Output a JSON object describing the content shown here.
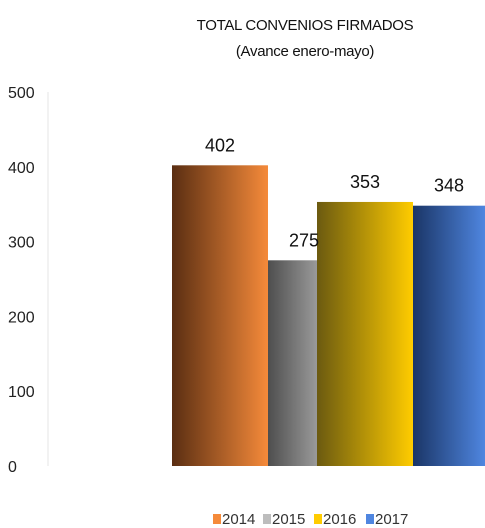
{
  "chart_data": {
    "type": "bar",
    "title": "TOTAL CONVENIOS FIRMADOS",
    "subtitle": "(Avance enero-mayo)",
    "categories": [
      "2014",
      "2015",
      "2016",
      "2017"
    ],
    "values": [
      402,
      275,
      353,
      348
    ],
    "ylim": [
      0,
      500
    ],
    "yticks": [
      "0",
      "100",
      "200",
      "300",
      "400",
      "500"
    ],
    "grid": false,
    "legend_position": "bottom",
    "colors": [
      {
        "dark": "#5a2e12",
        "light": "#f58a3a"
      },
      {
        "dark": "#4e4e4e",
        "light": "#bdbdbd"
      },
      {
        "dark": "#6b5a10",
        "light": "#ffcc00"
      },
      {
        "dark": "#1a3566",
        "light": "#4f86e0"
      }
    ]
  }
}
